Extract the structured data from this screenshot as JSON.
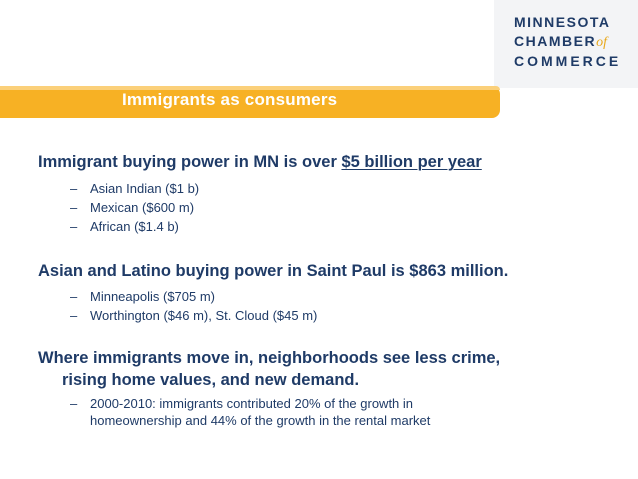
{
  "logo": {
    "line1": "MINNESOTA",
    "line2_main": "CHAMBER",
    "line2_of": "of",
    "line3": "COMMERCE"
  },
  "title": "Immigrants as consumers",
  "bullets": [
    {
      "text_before": "Immigrant buying power in MN is over ",
      "text_underlined": "$5 billion per year",
      "subs": [
        "Asian Indian ($1 b)",
        "Mexican ($600 m)",
        "African ($1.4 b)"
      ]
    },
    {
      "text": "Asian and Latino buying power in Saint Paul is $863 million.",
      "subs": [
        "Minneapolis ($705 m)",
        "Worthington ($46 m),  St. Cloud ($45 m)"
      ]
    },
    {
      "line1": "Where immigrants move in, neighborhoods see less crime,",
      "line2": "rising home values, and new demand.",
      "sub_line1": "2000-2010: immigrants contributed 20% of the growth in",
      "sub_line2": "homeownership and 44% of the growth in the rental market"
    }
  ],
  "colors": {
    "accent": "#f7b124",
    "text": "#1f3b67"
  }
}
